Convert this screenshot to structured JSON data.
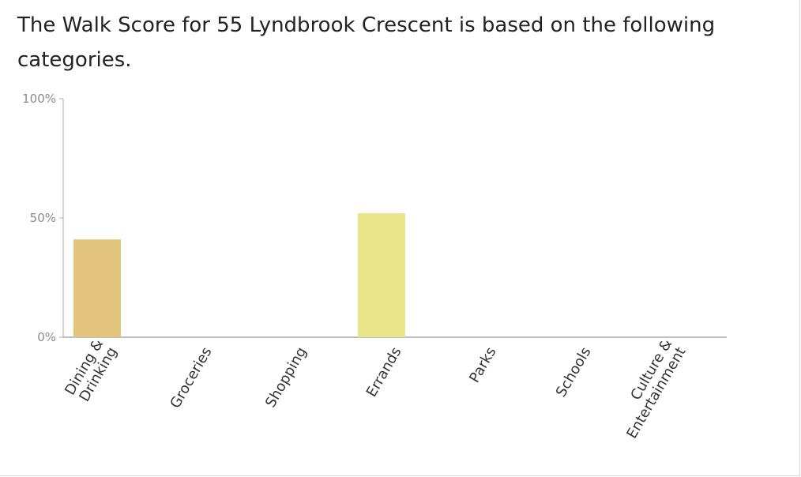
{
  "heading": {
    "text": "The Walk Score for 55 Lyndbrook Crescent is based on the following categories."
  },
  "chart_data": {
    "type": "bar",
    "categories": [
      [
        "Dining &",
        "Drinking"
      ],
      [
        "Groceries"
      ],
      [
        "Shopping"
      ],
      [
        "Errands"
      ],
      [
        "Parks"
      ],
      [
        "Schools"
      ],
      [
        "Culture &",
        "Entertainment"
      ]
    ],
    "values": [
      41,
      0,
      0,
      52,
      0,
      0,
      0
    ],
    "bar_colors": [
      "#e3c47c",
      "#e3c47c",
      "#e3c47c",
      "#e9e48a",
      "#e3c47c",
      "#e3c47c",
      "#e3c47c"
    ],
    "yticks": [
      0,
      50,
      100
    ],
    "ytick_labels": [
      "0%",
      "50%",
      "100%"
    ],
    "ylim": [
      0,
      100
    ],
    "title": "",
    "xlabel": "",
    "ylabel": "",
    "grid": false,
    "legend": "none",
    "axis_color": "#aaaaaa"
  }
}
